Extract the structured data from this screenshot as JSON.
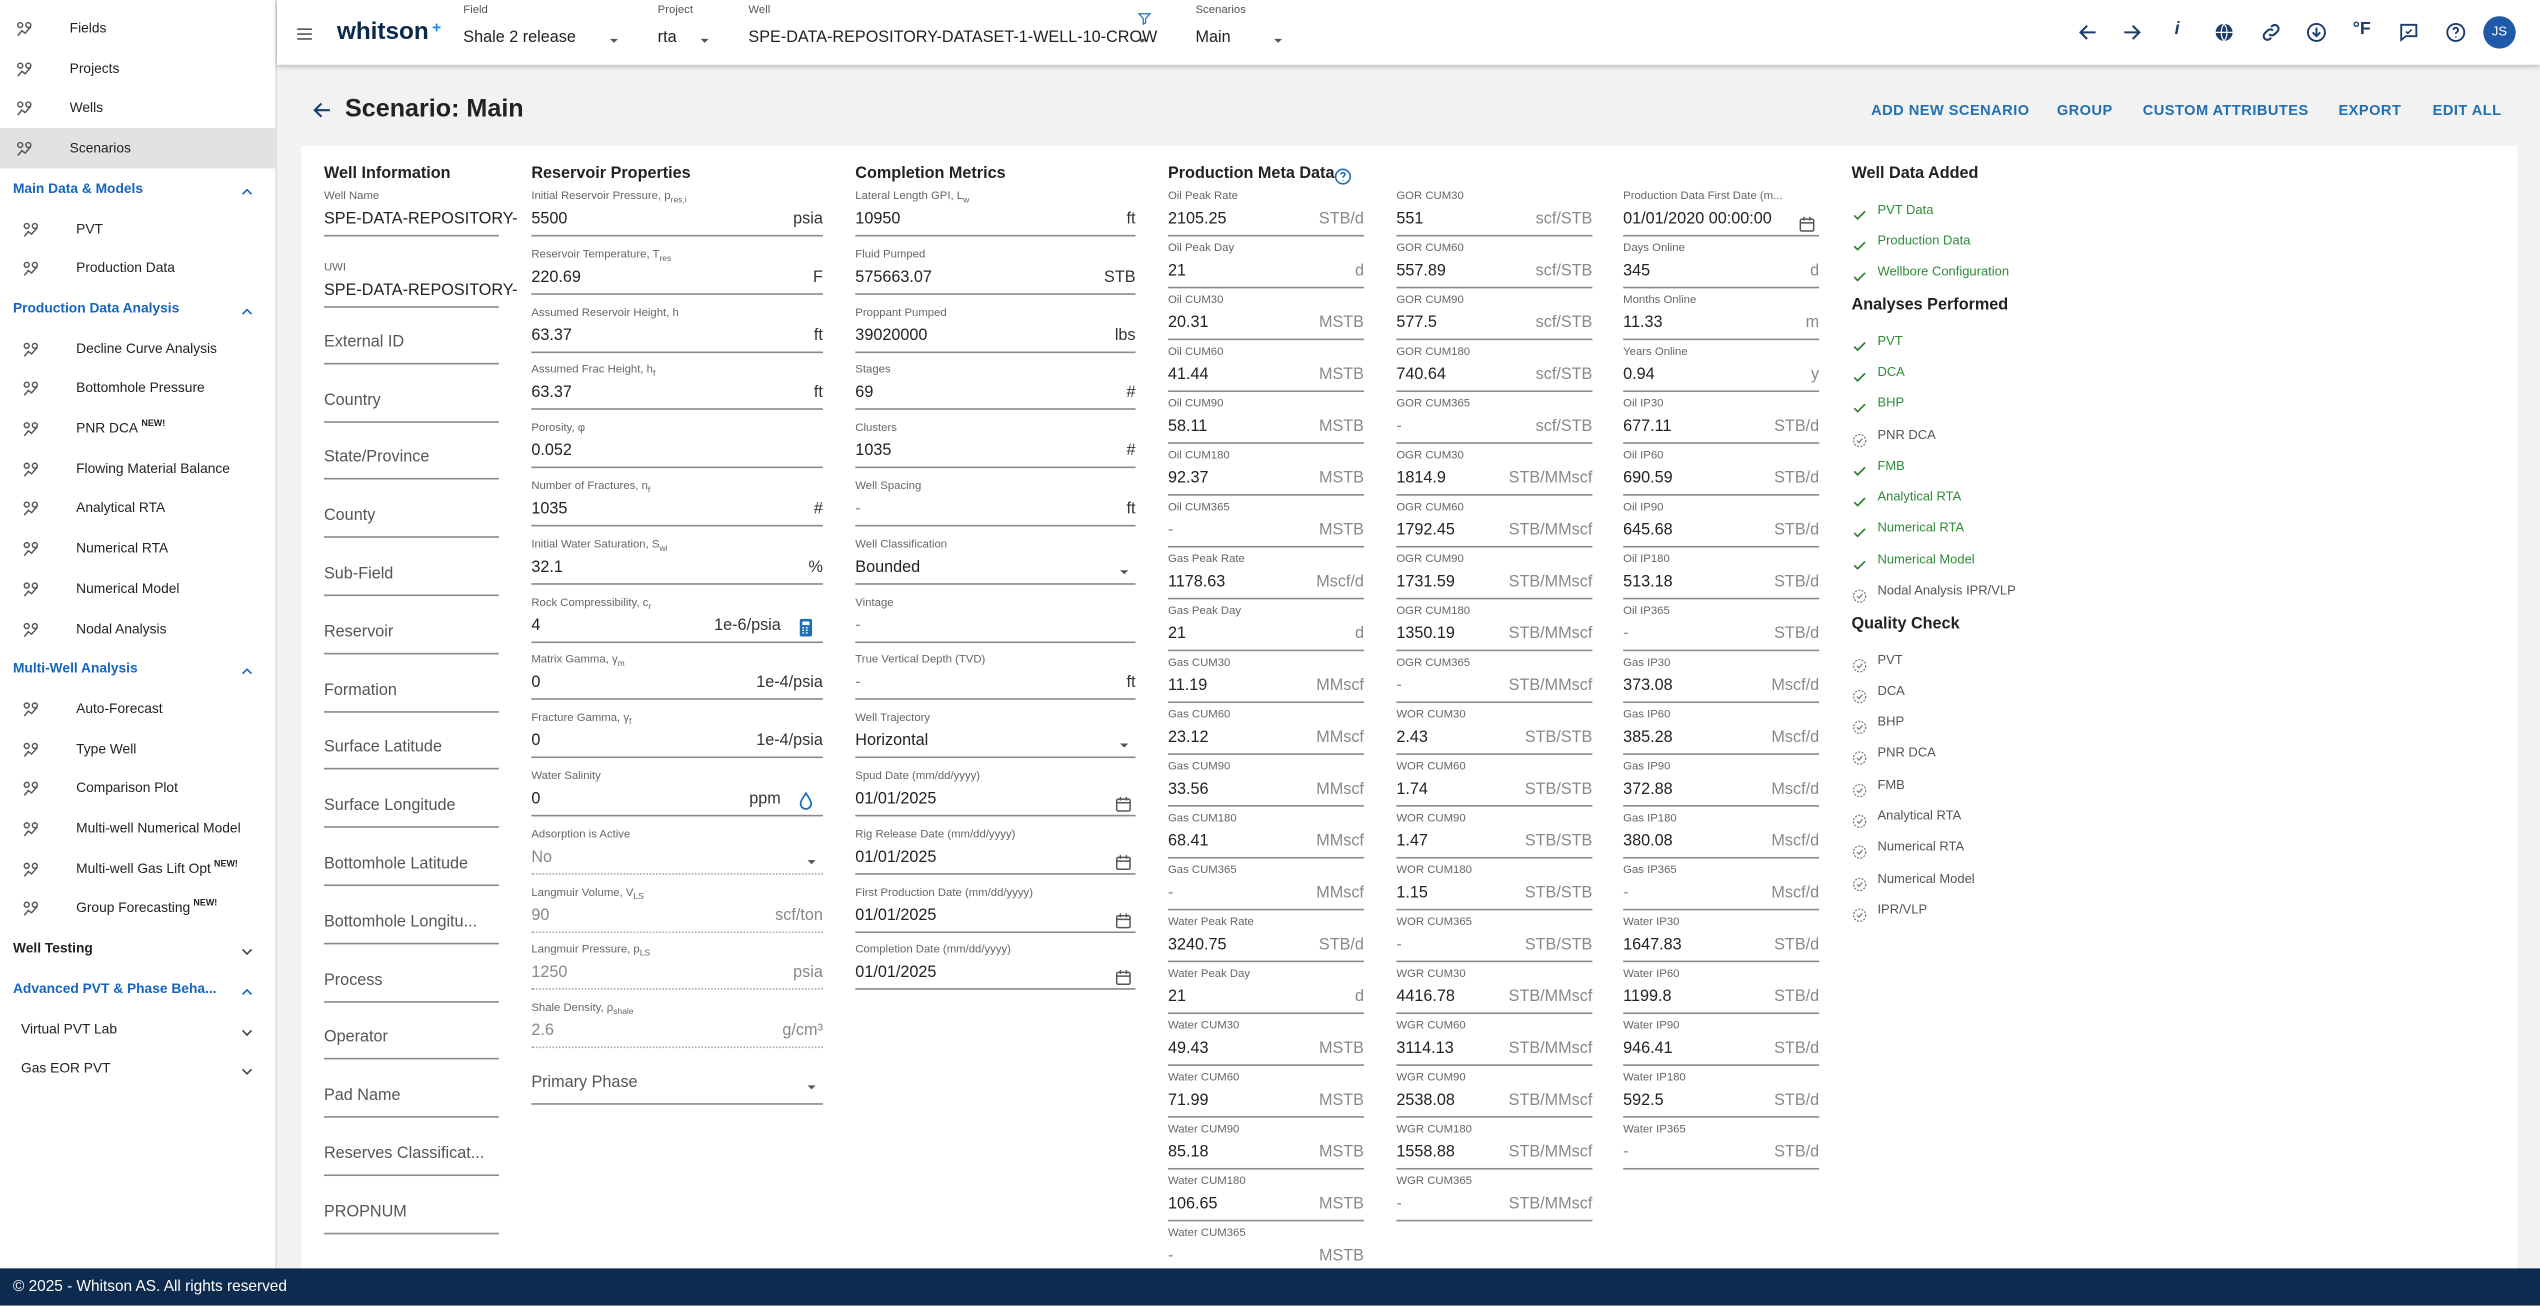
{
  "sidebar": {
    "top": [
      {
        "label": "Fields"
      },
      {
        "label": "Projects"
      },
      {
        "label": "Wells"
      },
      {
        "label": "Scenarios",
        "selected": true
      }
    ],
    "sections": [
      {
        "title": "Main Data & Models",
        "open": true,
        "items": [
          {
            "label": "PVT"
          },
          {
            "label": "Production Data"
          }
        ]
      },
      {
        "title": "Production Data Analysis",
        "open": true,
        "items": [
          {
            "label": "Decline Curve Analysis"
          },
          {
            "label": "Bottomhole Pressure"
          },
          {
            "label": "PNR DCA",
            "badge": "NEW!"
          },
          {
            "label": "Flowing Material Balance"
          },
          {
            "label": "Analytical RTA"
          },
          {
            "label": "Numerical RTA"
          },
          {
            "label": "Numerical Model"
          },
          {
            "label": "Nodal Analysis"
          }
        ]
      },
      {
        "title": "Multi-Well Analysis",
        "open": true,
        "items": [
          {
            "label": "Auto-Forecast"
          },
          {
            "label": "Type Well"
          },
          {
            "label": "Comparison Plot"
          },
          {
            "label": "Multi-well Numerical Model"
          },
          {
            "label": "Multi-well Gas Lift Opt",
            "badge": "NEW!"
          },
          {
            "label": "Group Forecasting",
            "badge": "NEW!"
          }
        ]
      },
      {
        "title": "Well Testing",
        "open": false,
        "items": []
      },
      {
        "title": "Advanced PVT & Phase Beha...",
        "open": true,
        "items": [
          {
            "label": "Virtual PVT Lab",
            "group": true
          },
          {
            "label": "Gas EOR PVT",
            "group": true
          }
        ]
      }
    ]
  },
  "topbar": {
    "brand": "whitson",
    "brand_mark": "+",
    "selectors": [
      {
        "label": "Field",
        "value": "Shale 2 release"
      },
      {
        "label": "Project",
        "value": "rta"
      },
      {
        "label": "Well",
        "value": "SPE-DATA-REPOSITORY-DATASET-1-WELL-10-CROW",
        "filter": true
      },
      {
        "label": "Scenarios",
        "value": "Main"
      }
    ],
    "info_icon": "i",
    "unit_icon": "°F",
    "avatar": "JS"
  },
  "header": {
    "title": "Scenario: Main",
    "actions": [
      "ADD NEW SCENARIO",
      "GROUP",
      "CUSTOM ATTRIBUTES",
      "EXPORT",
      "EDIT ALL"
    ]
  },
  "well_information": {
    "title": "Well Information",
    "rows": [
      {
        "label": "Well Name",
        "value": "SPE-DATA-REPOSITORY-"
      },
      {
        "label": "UWI",
        "value": "SPE-DATA-REPOSITORY-"
      },
      {
        "placeholder": "External ID"
      },
      {
        "placeholder": "Country"
      },
      {
        "placeholder": "State/Province"
      },
      {
        "placeholder": "County"
      },
      {
        "placeholder": "Sub-Field"
      },
      {
        "placeholder": "Reservoir"
      },
      {
        "placeholder": "Formation"
      },
      {
        "placeholder": "Surface Latitude"
      },
      {
        "placeholder": "Surface Longitude"
      },
      {
        "placeholder": "Bottomhole Latitude"
      },
      {
        "placeholder": "Bottomhole Longitu..."
      },
      {
        "placeholder": "Process"
      },
      {
        "placeholder": "Operator"
      },
      {
        "placeholder": "Pad Name"
      },
      {
        "placeholder": "Reserves Classificat..."
      },
      {
        "placeholder": "PROPNUM"
      }
    ]
  },
  "reservoir_properties": {
    "title": "Reservoir Properties",
    "rows": [
      {
        "label": {
          "text": "Initial Reservoir Pressure, p",
          "sub": "res,i"
        },
        "value": "5500",
        "unit": "psia"
      },
      {
        "label": {
          "text": "Reservoir Temperature, T",
          "sub": "res"
        },
        "value": "220.69",
        "unit": "F"
      },
      {
        "label": "Assumed Reservoir Height, h",
        "value": "63.37",
        "unit": "ft"
      },
      {
        "label": {
          "text": "Assumed Frac Height, h",
          "sub": "f"
        },
        "value": "63.37",
        "unit": "ft"
      },
      {
        "label": "Porosity, φ",
        "value": "0.052"
      },
      {
        "label": {
          "text": "Number of Fractures, n",
          "sub": "f"
        },
        "value": "1035",
        "unit": "#"
      },
      {
        "label": {
          "text": "Initial Water Saturation, S",
          "sub": "wi"
        },
        "value": "32.1",
        "unit": "%"
      },
      {
        "label": {
          "text": "Rock Compressibility, c",
          "sub": "r"
        },
        "value": "4",
        "unit": "1e-6/psia",
        "icon": "calculator"
      },
      {
        "label": {
          "text": "Matrix Gamma, γ",
          "sub": "m"
        },
        "value": "0",
        "unit": "1e-4/psia"
      },
      {
        "label": {
          "text": "Fracture Gamma, γ",
          "sub": "f"
        },
        "value": "0",
        "unit": "1e-4/psia"
      },
      {
        "label": "Water Salinity",
        "value": "0",
        "unit": "ppm",
        "icon": "drop"
      },
      {
        "label": "Adsorption is Active",
        "value": "No",
        "select": true,
        "disabled": true
      },
      {
        "label": {
          "text": "Langmuir Volume, V",
          "sub": "LS"
        },
        "value": "90",
        "unit": "scf/ton",
        "disabled": true
      },
      {
        "label": {
          "text": "Langmuir Pressure, p",
          "sub": "LS"
        },
        "value": "1250",
        "unit": "psia",
        "disabled": true
      },
      {
        "label": {
          "text": "Shale Density, ρ",
          "sub": "shale"
        },
        "value": "2.6",
        "unit": "g/cm³",
        "disabled": true
      },
      {
        "placeholder": "Primary Phase",
        "select": true
      }
    ]
  },
  "completion_metrics": {
    "title": "Completion Metrics",
    "rows": [
      {
        "label": {
          "text": "Lateral Length GPI, L",
          "sub": "w"
        },
        "value": "10950",
        "unit": "ft"
      },
      {
        "label": "Fluid Pumped",
        "value": "575663.07",
        "unit": "STB"
      },
      {
        "label": "Proppant Pumped",
        "value": "39020000",
        "unit": "lbs"
      },
      {
        "label": "Stages",
        "value": "69",
        "unit": "#"
      },
      {
        "label": "Clusters",
        "value": "1035",
        "unit": "#"
      },
      {
        "label": "Well Spacing",
        "value": "-",
        "unit": "ft"
      },
      {
        "label": "Well Classification",
        "value": "Bounded",
        "select": true
      },
      {
        "label": "Vintage",
        "value": "-"
      },
      {
        "label": "True Vertical Depth (TVD)",
        "value": "-",
        "unit": "ft"
      },
      {
        "label": "Well Trajectory",
        "value": "Horizontal",
        "select": true
      },
      {
        "label": "Spud Date (mm/dd/yyyy)",
        "value": "01/01/2025",
        "date": true
      },
      {
        "label": "Rig Release Date (mm/dd/yyyy)",
        "value": "01/01/2025",
        "date": true
      },
      {
        "label": "First Production Date (mm/dd/yyyy)",
        "value": "01/01/2025",
        "date": true
      },
      {
        "label": "Completion Date (mm/dd/yyyy)",
        "value": "01/01/2025",
        "date": true
      }
    ]
  },
  "production_meta_data": {
    "title": "Production Meta Data",
    "columns": [
      [
        {
          "label": "Oil Peak Rate",
          "value": "2105.25",
          "unit": "STB/d"
        },
        {
          "label": "Oil Peak Day",
          "value": "21",
          "unit": "d"
        },
        {
          "label": "Oil CUM30",
          "value": "20.31",
          "unit": "MSTB"
        },
        {
          "label": "Oil CUM60",
          "value": "41.44",
          "unit": "MSTB"
        },
        {
          "label": "Oil CUM90",
          "value": "58.11",
          "unit": "MSTB"
        },
        {
          "label": "Oil CUM180",
          "value": "92.37",
          "unit": "MSTB"
        },
        {
          "label": "Oil CUM365",
          "value": "-",
          "unit": "MSTB"
        },
        {
          "label": "Gas Peak Rate",
          "value": "1178.63",
          "unit": "Mscf/d"
        },
        {
          "label": "Gas Peak Day",
          "value": "21",
          "unit": "d"
        },
        {
          "label": "Gas CUM30",
          "value": "11.19",
          "unit": "MMscf"
        },
        {
          "label": "Gas CUM60",
          "value": "23.12",
          "unit": "MMscf"
        },
        {
          "label": "Gas CUM90",
          "value": "33.56",
          "unit": "MMscf"
        },
        {
          "label": "Gas CUM180",
          "value": "68.41",
          "unit": "MMscf"
        },
        {
          "label": "Gas CUM365",
          "value": "-",
          "unit": "MMscf"
        },
        {
          "label": "Water Peak Rate",
          "value": "3240.75",
          "unit": "STB/d"
        },
        {
          "label": "Water Peak Day",
          "value": "21",
          "unit": "d"
        },
        {
          "label": "Water CUM30",
          "value": "49.43",
          "unit": "MSTB"
        },
        {
          "label": "Water CUM60",
          "value": "71.99",
          "unit": "MSTB"
        },
        {
          "label": "Water CUM90",
          "value": "85.18",
          "unit": "MSTB"
        },
        {
          "label": "Water CUM180",
          "value": "106.65",
          "unit": "MSTB"
        },
        {
          "label": "Water CUM365",
          "value": "-",
          "unit": "MSTB"
        }
      ],
      [
        {
          "label": "GOR CUM30",
          "value": "551",
          "unit": "scf/STB"
        },
        {
          "label": "GOR CUM60",
          "value": "557.89",
          "unit": "scf/STB"
        },
        {
          "label": "GOR CUM90",
          "value": "577.5",
          "unit": "scf/STB"
        },
        {
          "label": "GOR CUM180",
          "value": "740.64",
          "unit": "scf/STB"
        },
        {
          "label": "GOR CUM365",
          "value": "-",
          "unit": "scf/STB"
        },
        {
          "label": "OGR CUM30",
          "value": "1814.9",
          "unit": "STB/MMscf"
        },
        {
          "label": "OGR CUM60",
          "value": "1792.45",
          "unit": "STB/MMscf"
        },
        {
          "label": "OGR CUM90",
          "value": "1731.59",
          "unit": "STB/MMscf"
        },
        {
          "label": "OGR CUM180",
          "value": "1350.19",
          "unit": "STB/MMscf"
        },
        {
          "label": "OGR CUM365",
          "value": "-",
          "unit": "STB/MMscf"
        },
        {
          "label": "WOR CUM30",
          "value": "2.43",
          "unit": "STB/STB"
        },
        {
          "label": "WOR CUM60",
          "value": "1.74",
          "unit": "STB/STB"
        },
        {
          "label": "WOR CUM90",
          "value": "1.47",
          "unit": "STB/STB"
        },
        {
          "label": "WOR CUM180",
          "value": "1.15",
          "unit": "STB/STB"
        },
        {
          "label": "WOR CUM365",
          "value": "-",
          "unit": "STB/STB"
        },
        {
          "label": "WGR CUM30",
          "value": "4416.78",
          "unit": "STB/MMscf"
        },
        {
          "label": "WGR CUM60",
          "value": "3114.13",
          "unit": "STB/MMscf"
        },
        {
          "label": "WGR CUM90",
          "value": "2538.08",
          "unit": "STB/MMscf"
        },
        {
          "label": "WGR CUM180",
          "value": "1558.88",
          "unit": "STB/MMscf"
        },
        {
          "label": "WGR CUM365",
          "value": "-",
          "unit": "STB/MMscf"
        }
      ],
      [
        {
          "label": "Production Data First Date (m...",
          "value": "01/01/2020 00:00:00",
          "date": true
        },
        {
          "label": "Days Online",
          "value": "345",
          "unit": "d"
        },
        {
          "label": "Months Online",
          "value": "11.33",
          "unit": "m"
        },
        {
          "label": "Years Online",
          "value": "0.94",
          "unit": "y"
        },
        {
          "label": "Oil IP30",
          "value": "677.11",
          "unit": "STB/d"
        },
        {
          "label": "Oil IP60",
          "value": "690.59",
          "unit": "STB/d"
        },
        {
          "label": "Oil IP90",
          "value": "645.68",
          "unit": "STB/d"
        },
        {
          "label": "Oil IP180",
          "value": "513.18",
          "unit": "STB/d"
        },
        {
          "label": "Oil IP365",
          "value": "-",
          "unit": "STB/d"
        },
        {
          "label": "Gas IP30",
          "value": "373.08",
          "unit": "Mscf/d"
        },
        {
          "label": "Gas IP60",
          "value": "385.28",
          "unit": "Mscf/d"
        },
        {
          "label": "Gas IP90",
          "value": "372.88",
          "unit": "Mscf/d"
        },
        {
          "label": "Gas IP180",
          "value": "380.08",
          "unit": "Mscf/d"
        },
        {
          "label": "Gas IP365",
          "value": "-",
          "unit": "Mscf/d"
        },
        {
          "label": "Water IP30",
          "value": "1647.83",
          "unit": "STB/d"
        },
        {
          "label": "Water IP60",
          "value": "1199.8",
          "unit": "STB/d"
        },
        {
          "label": "Water IP90",
          "value": "946.41",
          "unit": "STB/d"
        },
        {
          "label": "Water IP180",
          "value": "592.5",
          "unit": "STB/d"
        },
        {
          "label": "Water IP365",
          "value": "-",
          "unit": "STB/d"
        }
      ]
    ]
  },
  "well_status": {
    "sections": [
      {
        "title": "Well Data Added",
        "items": [
          {
            "label": "PVT Data",
            "done": true
          },
          {
            "label": "Production Data",
            "done": true
          },
          {
            "label": "Wellbore Configuration",
            "done": true
          }
        ]
      },
      {
        "title": "Analyses Performed",
        "items": [
          {
            "label": "PVT",
            "done": true
          },
          {
            "label": "DCA",
            "done": true
          },
          {
            "label": "BHP",
            "done": true
          },
          {
            "label": "PNR DCA",
            "done": false
          },
          {
            "label": "FMB",
            "done": true
          },
          {
            "label": "Analytical RTA",
            "done": true
          },
          {
            "label": "Numerical RTA",
            "done": true
          },
          {
            "label": "Numerical Model",
            "done": true
          },
          {
            "label": "Nodal Analysis IPR/VLP",
            "done": false
          }
        ]
      },
      {
        "title": "Quality Check",
        "items": [
          {
            "label": "PVT",
            "done": false
          },
          {
            "label": "DCA",
            "done": false
          },
          {
            "label": "BHP",
            "done": false
          },
          {
            "label": "PNR DCA",
            "done": false
          },
          {
            "label": "FMB",
            "done": false
          },
          {
            "label": "Analytical RTA",
            "done": false
          },
          {
            "label": "Numerical RTA",
            "done": false
          },
          {
            "label": "Numerical Model",
            "done": false
          },
          {
            "label": "IPR/VLP",
            "done": false
          }
        ]
      }
    ]
  },
  "footer": "© 2025 - Whitson AS. All rights reserved"
}
